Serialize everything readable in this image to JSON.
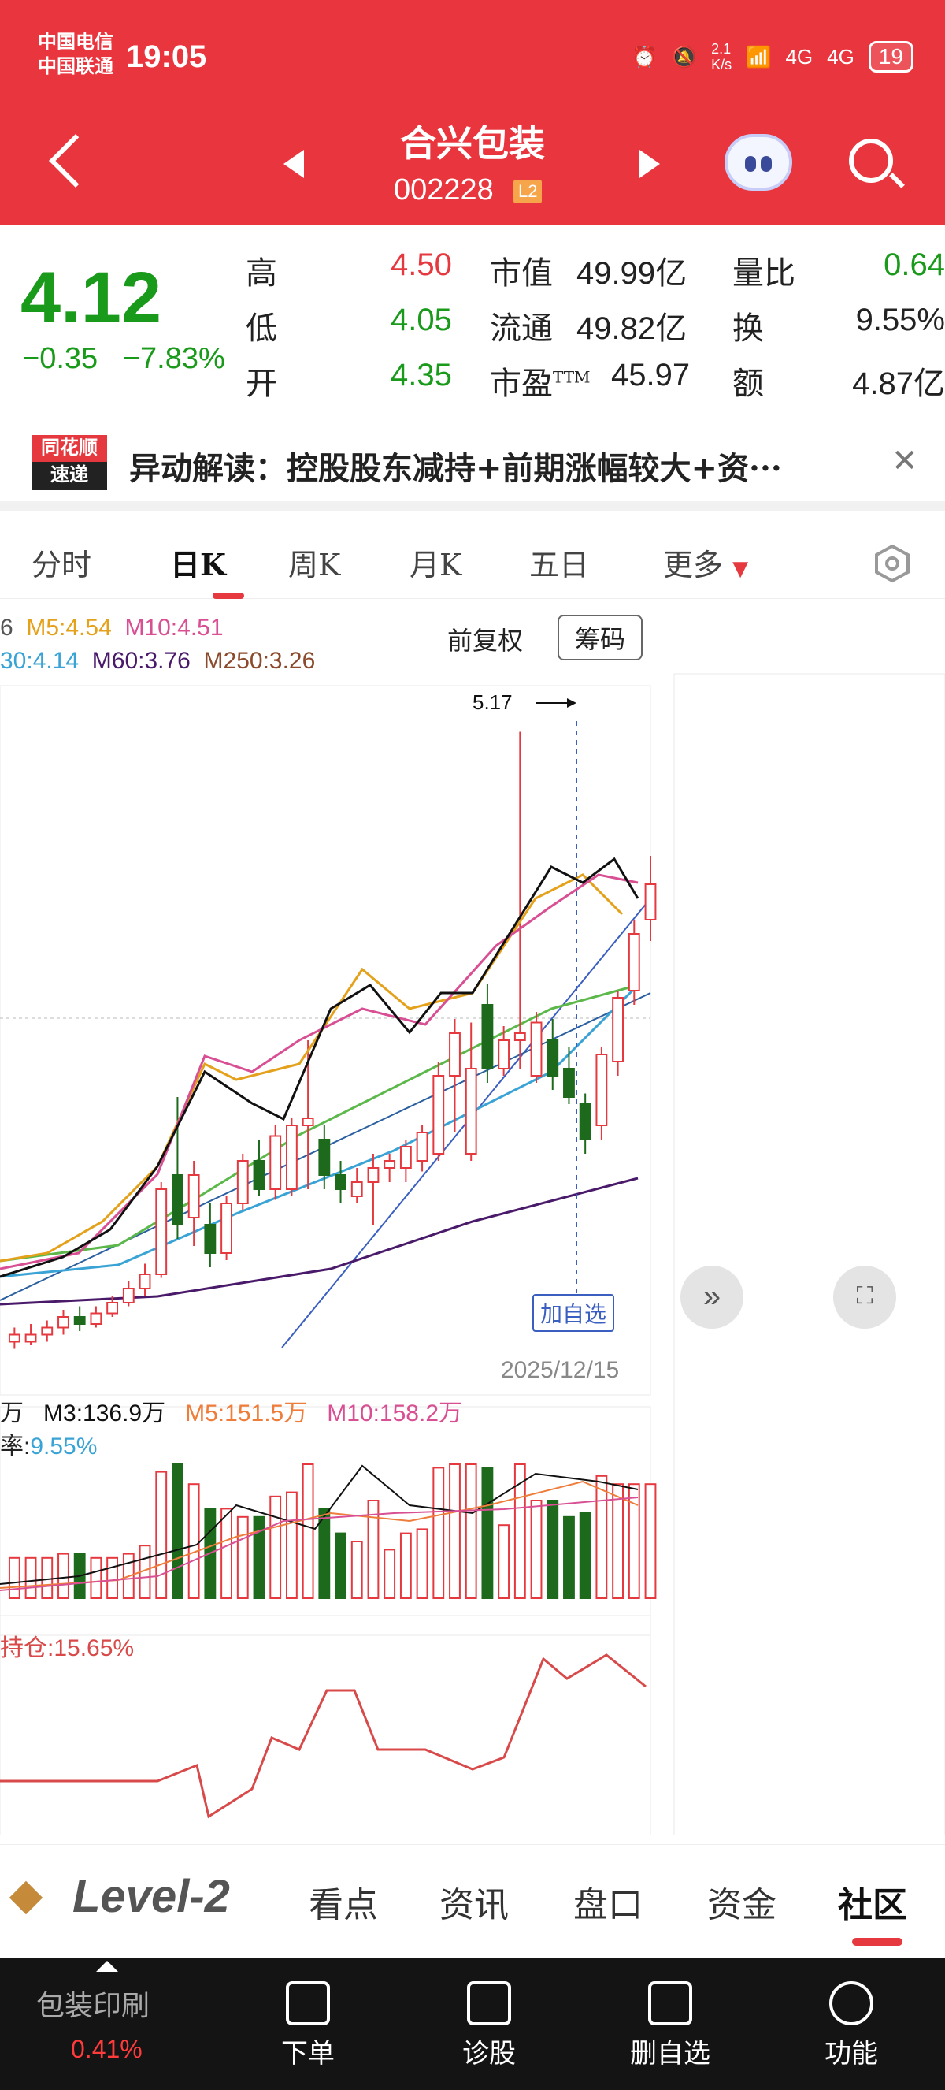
{
  "status": {
    "carrier1": "中国电信",
    "carrier2": "中国联通",
    "time": "19:05",
    "netspeed": "2.1\nK/s",
    "battery": "19",
    "signal1": "4G",
    "signal2": "4G"
  },
  "nav": {
    "name": "合兴包装",
    "code": "002228",
    "level": "L2"
  },
  "quote": {
    "price": "4.12",
    "change": "−0.35",
    "change_pct": "−7.83%",
    "high_label": "高",
    "high": "4.50",
    "low_label": "低",
    "low": "4.05",
    "open_label": "开",
    "open": "4.35",
    "mktcap_label": "市值",
    "mktcap": "49.99亿",
    "float_label": "流通",
    "float": "49.82亿",
    "pe_label": "市盈",
    "pe_ttm": "TTM",
    "pe": "45.97",
    "vol_ratio_label": "量比",
    "vol_ratio": "0.64",
    "turnover_label": "换",
    "turnover": "9.55%",
    "amount_label": "额",
    "amount": "4.87亿"
  },
  "alert": {
    "badge1": "同花顺",
    "badge2": "速递",
    "text": "异动解读：控股股东减持+前期涨幅较大+资···"
  },
  "tabs": [
    "分时",
    "日K",
    "周K",
    "月K",
    "五日",
    "更多"
  ],
  "chart": {
    "ma_row1": [
      "6",
      "M5:4.54",
      "M10:4.51"
    ],
    "ma_row2": [
      "30:4.14",
      "M60:3.76",
      "M250:3.26"
    ],
    "fq": "前复权",
    "chip_btn": "筹码",
    "max_label": "5.17",
    "date": "2025/12/15",
    "add_watch": "加自选",
    "vol_row1": [
      "万",
      "M3:136.9万",
      "M5:151.5万",
      "M10:158.2万"
    ],
    "vol_row2": [
      "率:",
      "9.55%"
    ],
    "hold": "持仓:15.65%"
  },
  "colors": {
    "up": "#e5393f",
    "down": "#1d6a1d",
    "m5": "#e4a11b",
    "m10": "#d84f93",
    "m30": "#3aa3d6",
    "m60": "#4a1a6a",
    "m250": "#8b4a2c"
  },
  "chart_data": {
    "type": "candlestick",
    "candles": [
      {
        "o": 3.45,
        "c": 3.47,
        "h": 3.49,
        "l": 3.43
      },
      {
        "o": 3.45,
        "c": 3.47,
        "h": 3.5,
        "l": 3.44
      },
      {
        "o": 3.47,
        "c": 3.49,
        "h": 3.51,
        "l": 3.45
      },
      {
        "o": 3.49,
        "c": 3.52,
        "h": 3.54,
        "l": 3.47
      },
      {
        "o": 3.52,
        "c": 3.5,
        "h": 3.55,
        "l": 3.48
      },
      {
        "o": 3.5,
        "c": 3.53,
        "h": 3.55,
        "l": 3.49
      },
      {
        "o": 3.53,
        "c": 3.56,
        "h": 3.58,
        "l": 3.52
      },
      {
        "o": 3.56,
        "c": 3.6,
        "h": 3.62,
        "l": 3.55
      },
      {
        "o": 3.6,
        "c": 3.64,
        "h": 3.67,
        "l": 3.58
      },
      {
        "o": 3.64,
        "c": 3.88,
        "h": 3.9,
        "l": 3.63
      },
      {
        "o": 3.92,
        "c": 3.78,
        "h": 4.14,
        "l": 3.74
      },
      {
        "o": 3.8,
        "c": 3.92,
        "h": 3.96,
        "l": 3.72
      },
      {
        "o": 3.78,
        "c": 3.7,
        "h": 3.84,
        "l": 3.66
      },
      {
        "o": 3.7,
        "c": 3.84,
        "h": 3.86,
        "l": 3.68
      },
      {
        "o": 3.84,
        "c": 3.96,
        "h": 3.98,
        "l": 3.82
      },
      {
        "o": 3.96,
        "c": 3.88,
        "h": 4.02,
        "l": 3.86
      },
      {
        "o": 3.88,
        "c": 4.03,
        "h": 4.06,
        "l": 3.85
      },
      {
        "o": 3.88,
        "c": 4.06,
        "h": 4.08,
        "l": 3.86
      },
      {
        "o": 4.06,
        "c": 4.08,
        "h": 4.3,
        "l": 3.88
      },
      {
        "o": 4.02,
        "c": 3.92,
        "h": 4.06,
        "l": 3.88
      },
      {
        "o": 3.92,
        "c": 3.88,
        "h": 3.96,
        "l": 3.84
      },
      {
        "o": 3.86,
        "c": 3.9,
        "h": 3.94,
        "l": 3.84
      },
      {
        "o": 3.9,
        "c": 3.94,
        "h": 3.98,
        "l": 3.78
      },
      {
        "o": 3.94,
        "c": 3.96,
        "h": 3.98,
        "l": 3.9
      },
      {
        "o": 3.94,
        "c": 4.0,
        "h": 4.02,
        "l": 3.9
      },
      {
        "o": 3.96,
        "c": 4.04,
        "h": 4.06,
        "l": 3.93
      },
      {
        "o": 3.98,
        "c": 4.2,
        "h": 4.24,
        "l": 3.96
      },
      {
        "o": 4.2,
        "c": 4.32,
        "h": 4.36,
        "l": 4.04
      },
      {
        "o": 3.98,
        "c": 4.22,
        "h": 4.35,
        "l": 3.96
      },
      {
        "o": 4.4,
        "c": 4.22,
        "h": 4.46,
        "l": 4.18
      },
      {
        "o": 4.22,
        "c": 4.3,
        "h": 4.34,
        "l": 4.2
      },
      {
        "o": 4.3,
        "c": 4.32,
        "h": 5.17,
        "l": 4.22
      },
      {
        "o": 4.2,
        "c": 4.35,
        "h": 4.38,
        "l": 4.18
      },
      {
        "o": 4.3,
        "c": 4.2,
        "h": 4.36,
        "l": 4.16
      },
      {
        "o": 4.22,
        "c": 4.14,
        "h": 4.28,
        "l": 4.12
      },
      {
        "o": 4.12,
        "c": 4.02,
        "h": 4.15,
        "l": 3.98
      },
      {
        "o": 4.06,
        "c": 4.26,
        "h": 4.28,
        "l": 4.02
      },
      {
        "o": 4.24,
        "c": 4.42,
        "h": 4.44,
        "l": 4.2
      },
      {
        "o": 4.44,
        "c": 4.6,
        "h": 4.64,
        "l": 4.4
      },
      {
        "o": 4.64,
        "c": 4.74,
        "h": 4.82,
        "l": 4.58
      }
    ],
    "ylim": [
      3.3,
      5.3
    ]
  },
  "bottom_tabs": [
    "Level-2",
    "看点",
    "资讯",
    "盘口",
    "资金",
    "社区"
  ],
  "bottom_bar": {
    "sector": "包装印刷",
    "sector_pct": "0.41%",
    "items": [
      "下单",
      "诊股",
      "删自选",
      "功能"
    ]
  }
}
